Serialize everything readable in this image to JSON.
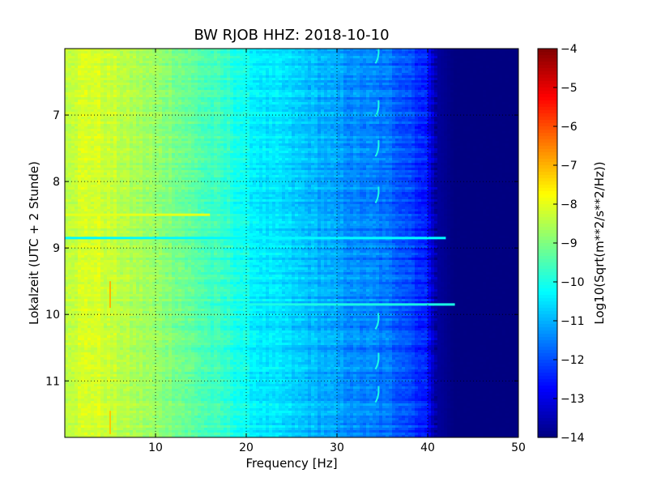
{
  "chart_data": {
    "type": "heatmap",
    "title": "BW RJOB HHZ: 2018-10-10",
    "xlabel": "Frequency [Hz]",
    "ylabel": "Lokalzeit (UTC + 2 Stunde)",
    "xlim": [
      0,
      50
    ],
    "ylim": [
      6.0,
      11.85
    ],
    "y_inverted": true,
    "grid": true,
    "x_ticks": [
      10,
      20,
      30,
      40,
      50
    ],
    "y_ticks": [
      7,
      8,
      9,
      10,
      11
    ],
    "colormap": "jet",
    "colorbar": {
      "label": "Log10(Sqrt(m**2/s**2/Hz))",
      "range": [
        -14,
        -4
      ],
      "ticks": [
        -4,
        -5,
        -6,
        -7,
        -8,
        -9,
        -10,
        -11,
        -12,
        -13,
        -14
      ]
    },
    "spectrum_profile": {
      "frequency_hz": [
        0,
        3,
        6,
        8,
        10,
        12,
        14,
        16,
        18,
        20,
        22,
        24,
        26,
        28,
        30,
        32,
        34,
        36,
        38,
        40,
        41,
        43,
        50
      ],
      "log10_amplitude": [
        -8.3,
        -8.1,
        -8.4,
        -8.6,
        -8.8,
        -9.0,
        -9.3,
        -9.6,
        -9.8,
        -10.2,
        -10.5,
        -10.6,
        -10.8,
        -11.0,
        -11.2,
        -11.4,
        -11.5,
        -11.7,
        -12.0,
        -12.6,
        -13.7,
        -14.0,
        -14.0
      ]
    },
    "features": [
      {
        "kind": "strong horizontal band",
        "time": 8.5,
        "freq_range": [
          0,
          16
        ],
        "log10_amplitude": -8.0
      },
      {
        "kind": "horizontal band",
        "time": 9.85,
        "freq_range": [
          16,
          43
        ],
        "log10_amplitude": -10.0
      },
      {
        "kind": "horizontal band",
        "time": 8.85,
        "freq_range": [
          0,
          42
        ],
        "log10_amplitude": -10.3
      },
      {
        "kind": "vertical line",
        "freq": 5.0,
        "time_range": [
          9.5,
          9.9
        ],
        "log10_amplitude": -7.0
      },
      {
        "kind": "vertical line",
        "freq": 5.0,
        "time_range": [
          11.45,
          11.8
        ],
        "log10_amplitude": -7.2
      },
      {
        "kind": "repeating tonal hook",
        "freq": 34.5,
        "times": [
          6.1,
          6.9,
          7.5,
          8.2,
          10.1,
          10.7,
          11.2
        ],
        "log10_amplitude": -10.0
      }
    ]
  }
}
